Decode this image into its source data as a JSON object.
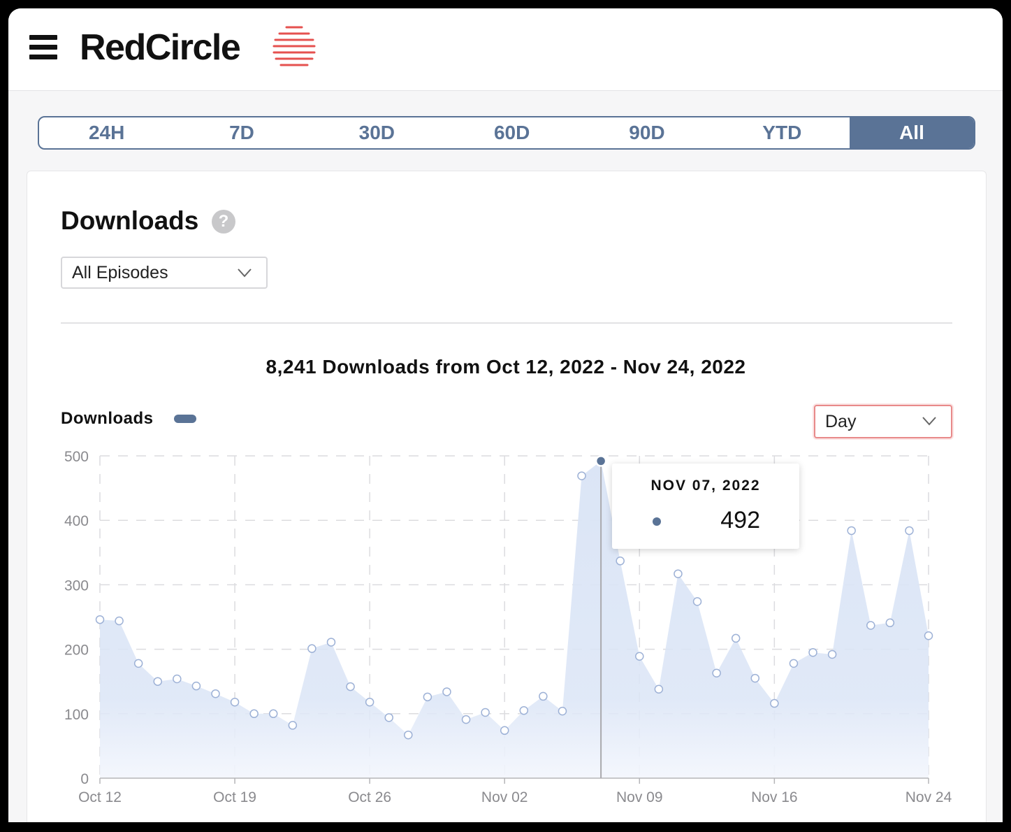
{
  "header": {
    "brand": "RedCircle"
  },
  "tabs": [
    "24H",
    "7D",
    "30D",
    "60D",
    "90D",
    "YTD",
    "All"
  ],
  "active_tab": "All",
  "card": {
    "title": "Downloads",
    "episode_filter": "All Episodes",
    "summary": "8,241 Downloads from Oct 12, 2022 - Nov 24, 2022",
    "legend_label": "Downloads",
    "granularity": "Day"
  },
  "colors": {
    "accent": "#5a7396",
    "fill": "#dbe5f6",
    "brand_red": "#e5514f"
  },
  "tooltip": {
    "date": "NOV 07, 2022",
    "value": "492"
  },
  "chart_data": {
    "type": "area",
    "x": [
      "Oct 12",
      "Oct 13",
      "Oct 14",
      "Oct 15",
      "Oct 16",
      "Oct 17",
      "Oct 18",
      "Oct 19",
      "Oct 20",
      "Oct 21",
      "Oct 22",
      "Oct 23",
      "Oct 24",
      "Oct 25",
      "Oct 26",
      "Oct 27",
      "Oct 28",
      "Oct 29",
      "Oct 30",
      "Oct 31",
      "Nov 01",
      "Nov 02",
      "Nov 03",
      "Nov 04",
      "Nov 05",
      "Nov 06",
      "Nov 07",
      "Nov 08",
      "Nov 09",
      "Nov 10",
      "Nov 11",
      "Nov 12",
      "Nov 13",
      "Nov 14",
      "Nov 15",
      "Nov 16",
      "Nov 17",
      "Nov 18",
      "Nov 19",
      "Nov 20",
      "Nov 21",
      "Nov 22",
      "Nov 23",
      "Nov 24"
    ],
    "series": [
      {
        "name": "Downloads",
        "values": [
          246,
          244,
          178,
          150,
          154,
          143,
          131,
          118,
          100,
          100,
          82,
          201,
          211,
          142,
          118,
          94,
          67,
          126,
          134,
          91,
          102,
          74,
          105,
          127,
          104,
          469,
          492,
          337,
          189,
          138,
          317,
          274,
          163,
          217,
          155,
          116,
          178,
          195,
          192,
          384,
          237,
          241,
          384,
          221
        ]
      }
    ],
    "xticks": [
      "Oct 12",
      "Oct 19",
      "Oct 26",
      "Nov 02",
      "Nov 09",
      "Nov 16",
      "Nov 24"
    ],
    "yticks": [
      "0",
      "100",
      "200",
      "300",
      "400",
      "500"
    ],
    "ylim": [
      0,
      500
    ],
    "grid": true,
    "highlight": "Nov 07"
  }
}
